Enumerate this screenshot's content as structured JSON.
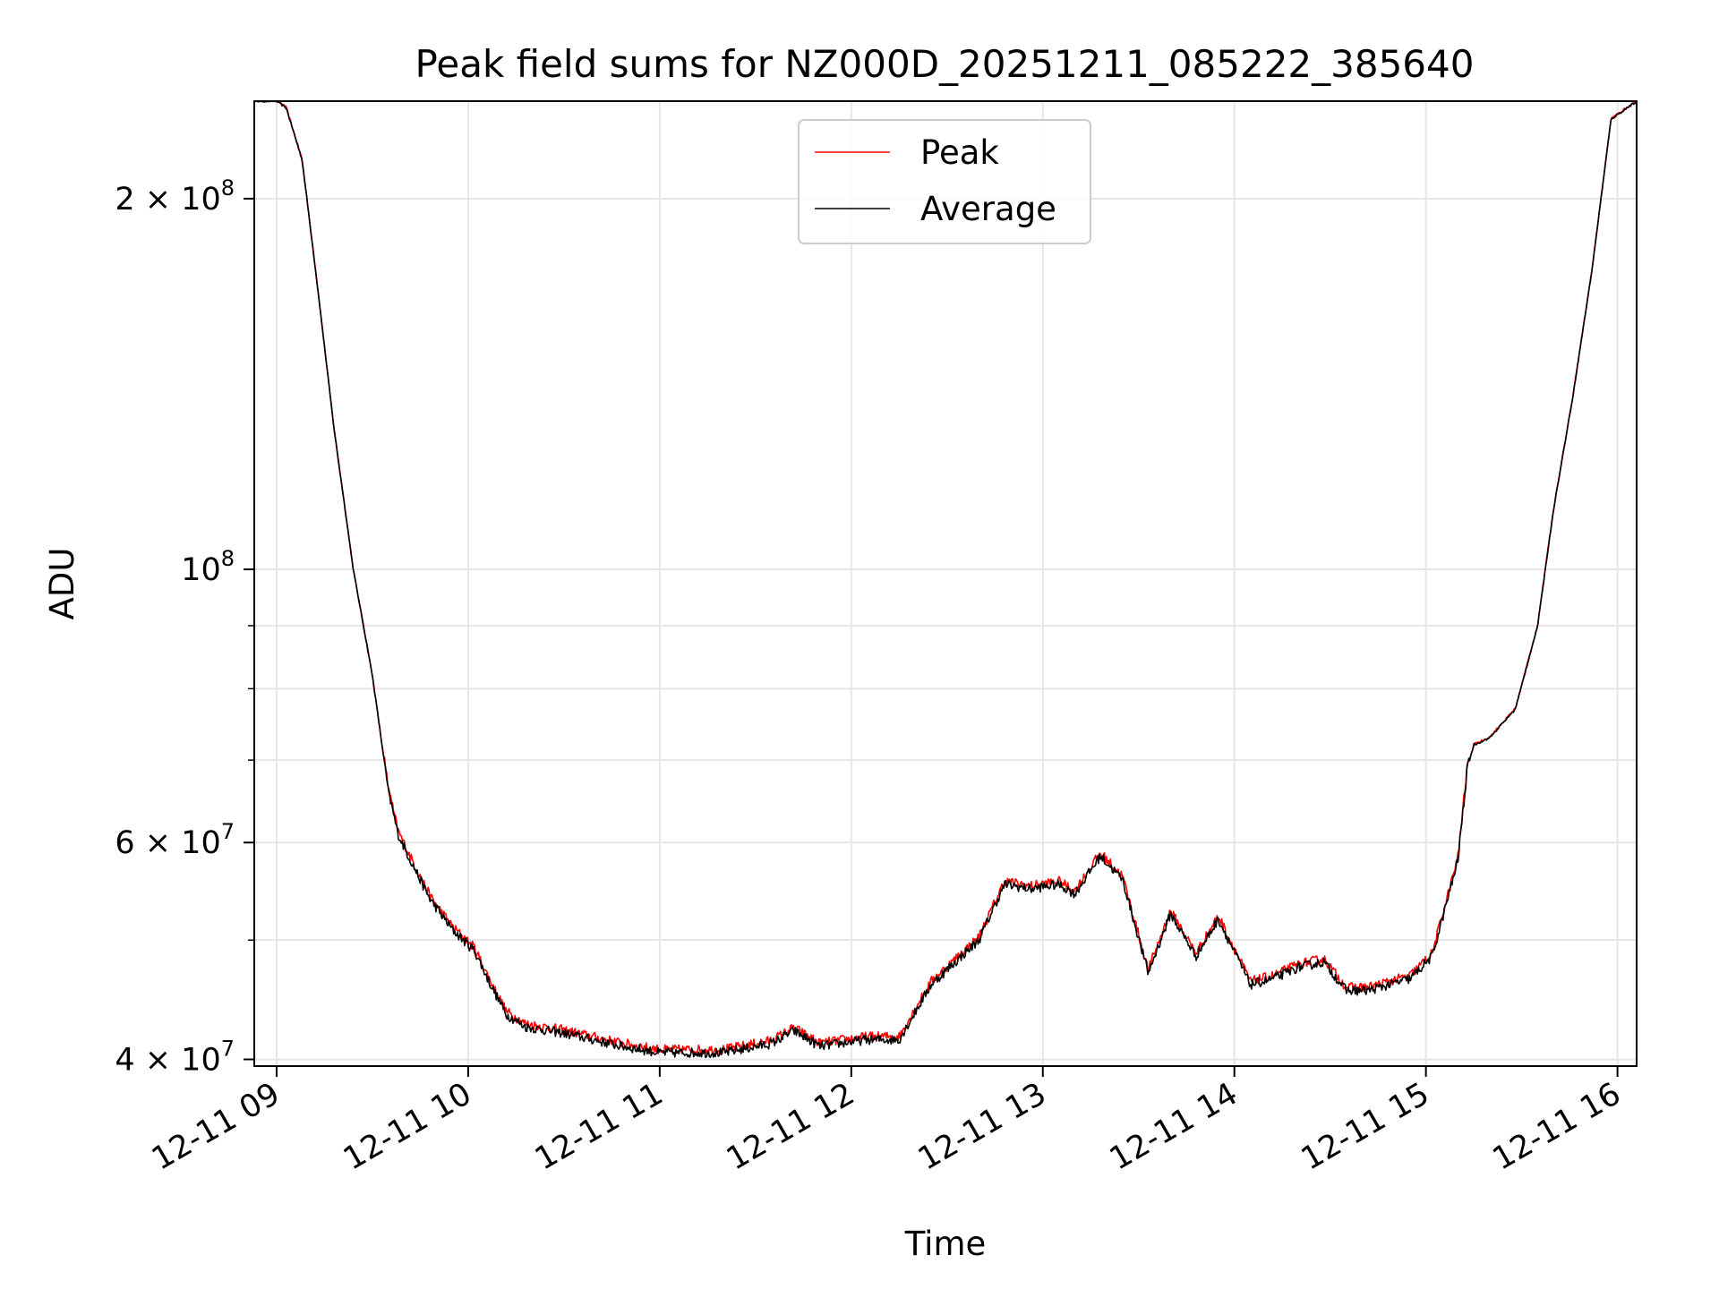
{
  "chart_data": {
    "type": "line",
    "title": "Peak field sums for NZ000D_20251211_085222_385640",
    "xlabel": "Time",
    "ylabel": "ADU",
    "yscale": "log",
    "xlim": [
      "2025-12-11T08:53",
      "2025-12-11T16:06"
    ],
    "ylim": [
      39500000,
      240000000
    ],
    "grid": true,
    "legend": "upper-center",
    "x_ticks": [
      {
        "t": "2025-12-11T09:00",
        "label": "12-11 09"
      },
      {
        "t": "2025-12-11T10:00",
        "label": "12-11 10"
      },
      {
        "t": "2025-12-11T11:00",
        "label": "12-11 11"
      },
      {
        "t": "2025-12-11T12:00",
        "label": "12-11 12"
      },
      {
        "t": "2025-12-11T13:00",
        "label": "12-11 13"
      },
      {
        "t": "2025-12-11T14:00",
        "label": "12-11 14"
      },
      {
        "t": "2025-12-11T15:00",
        "label": "12-11 15"
      },
      {
        "t": "2025-12-11T16:00",
        "label": "12-11 16"
      }
    ],
    "y_ticks": [
      {
        "value": 40000000,
        "base": "4 × 10",
        "exp": "7"
      },
      {
        "value": 60000000,
        "base": "6 × 10",
        "exp": "7"
      },
      {
        "value": 100000000,
        "base": "10",
        "exp": "8"
      },
      {
        "value": 200000000,
        "base": "2 × 10",
        "exp": "8"
      }
    ],
    "y_minor_ticks": [
      50000000,
      70000000,
      80000000,
      90000000
    ],
    "series": [
      {
        "name": "Peak",
        "color": "#ff0000",
        "offset": 0.006
      },
      {
        "name": "Average",
        "color": "#000000",
        "offset": 0.0
      }
    ],
    "x": [
      "2025-12-11T08:53",
      "2025-12-11T09:00",
      "2025-12-11T09:03",
      "2025-12-11T09:08",
      "2025-12-11T09:13",
      "2025-12-11T09:18",
      "2025-12-11T09:24",
      "2025-12-11T09:30",
      "2025-12-11T09:35",
      "2025-12-11T09:38",
      "2025-12-11T09:42",
      "2025-12-11T09:48",
      "2025-12-11T09:55",
      "2025-12-11T10:02",
      "2025-12-11T10:07",
      "2025-12-11T10:12",
      "2025-12-11T10:18",
      "2025-12-11T10:30",
      "2025-12-11T10:48",
      "2025-12-11T11:00",
      "2025-12-11T11:20",
      "2025-12-11T11:35",
      "2025-12-11T11:42",
      "2025-12-11T11:50",
      "2025-12-11T12:05",
      "2025-12-11T12:15",
      "2025-12-11T12:25",
      "2025-12-11T12:40",
      "2025-12-11T12:48",
      "2025-12-11T12:56",
      "2025-12-11T13:05",
      "2025-12-11T13:10",
      "2025-12-11T13:18",
      "2025-12-11T13:25",
      "2025-12-11T13:33",
      "2025-12-11T13:40",
      "2025-12-11T13:48",
      "2025-12-11T13:55",
      "2025-12-11T14:05",
      "2025-12-11T14:12",
      "2025-12-11T14:20",
      "2025-12-11T14:28",
      "2025-12-11T14:35",
      "2025-12-11T14:42",
      "2025-12-11T14:55",
      "2025-12-11T15:02",
      "2025-12-11T15:10",
      "2025-12-11T15:13",
      "2025-12-11T15:15",
      "2025-12-11T15:20",
      "2025-12-11T15:28",
      "2025-12-11T15:35",
      "2025-12-11T15:40",
      "2025-12-11T15:46",
      "2025-12-11T15:52",
      "2025-12-11T15:58",
      "2025-12-11T16:06"
    ],
    "values": [
      240000000,
      240000000,
      237000000,
      215000000,
      168000000,
      130000000,
      100000000,
      82000000,
      66000000,
      61000000,
      58000000,
      54000000,
      51000000,
      49000000,
      46000000,
      43500000,
      42500000,
      42000000,
      41000000,
      40500000,
      40500000,
      41200000,
      42200000,
      41000000,
      41500000,
      41500000,
      46000000,
      50000000,
      55500000,
      55000000,
      55500000,
      54500000,
      58500000,
      56000000,
      47000000,
      52500000,
      48500000,
      52000000,
      46000000,
      46500000,
      47500000,
      48000000,
      45500000,
      45500000,
      46500000,
      48500000,
      58000000,
      69000000,
      72000000,
      73000000,
      77000000,
      90000000,
      112000000,
      138000000,
      175000000,
      232000000,
      240000000
    ]
  },
  "legend": {
    "items": [
      {
        "label": "Peak",
        "color": "#ff0000"
      },
      {
        "label": "Average",
        "color": "#000000"
      }
    ]
  }
}
